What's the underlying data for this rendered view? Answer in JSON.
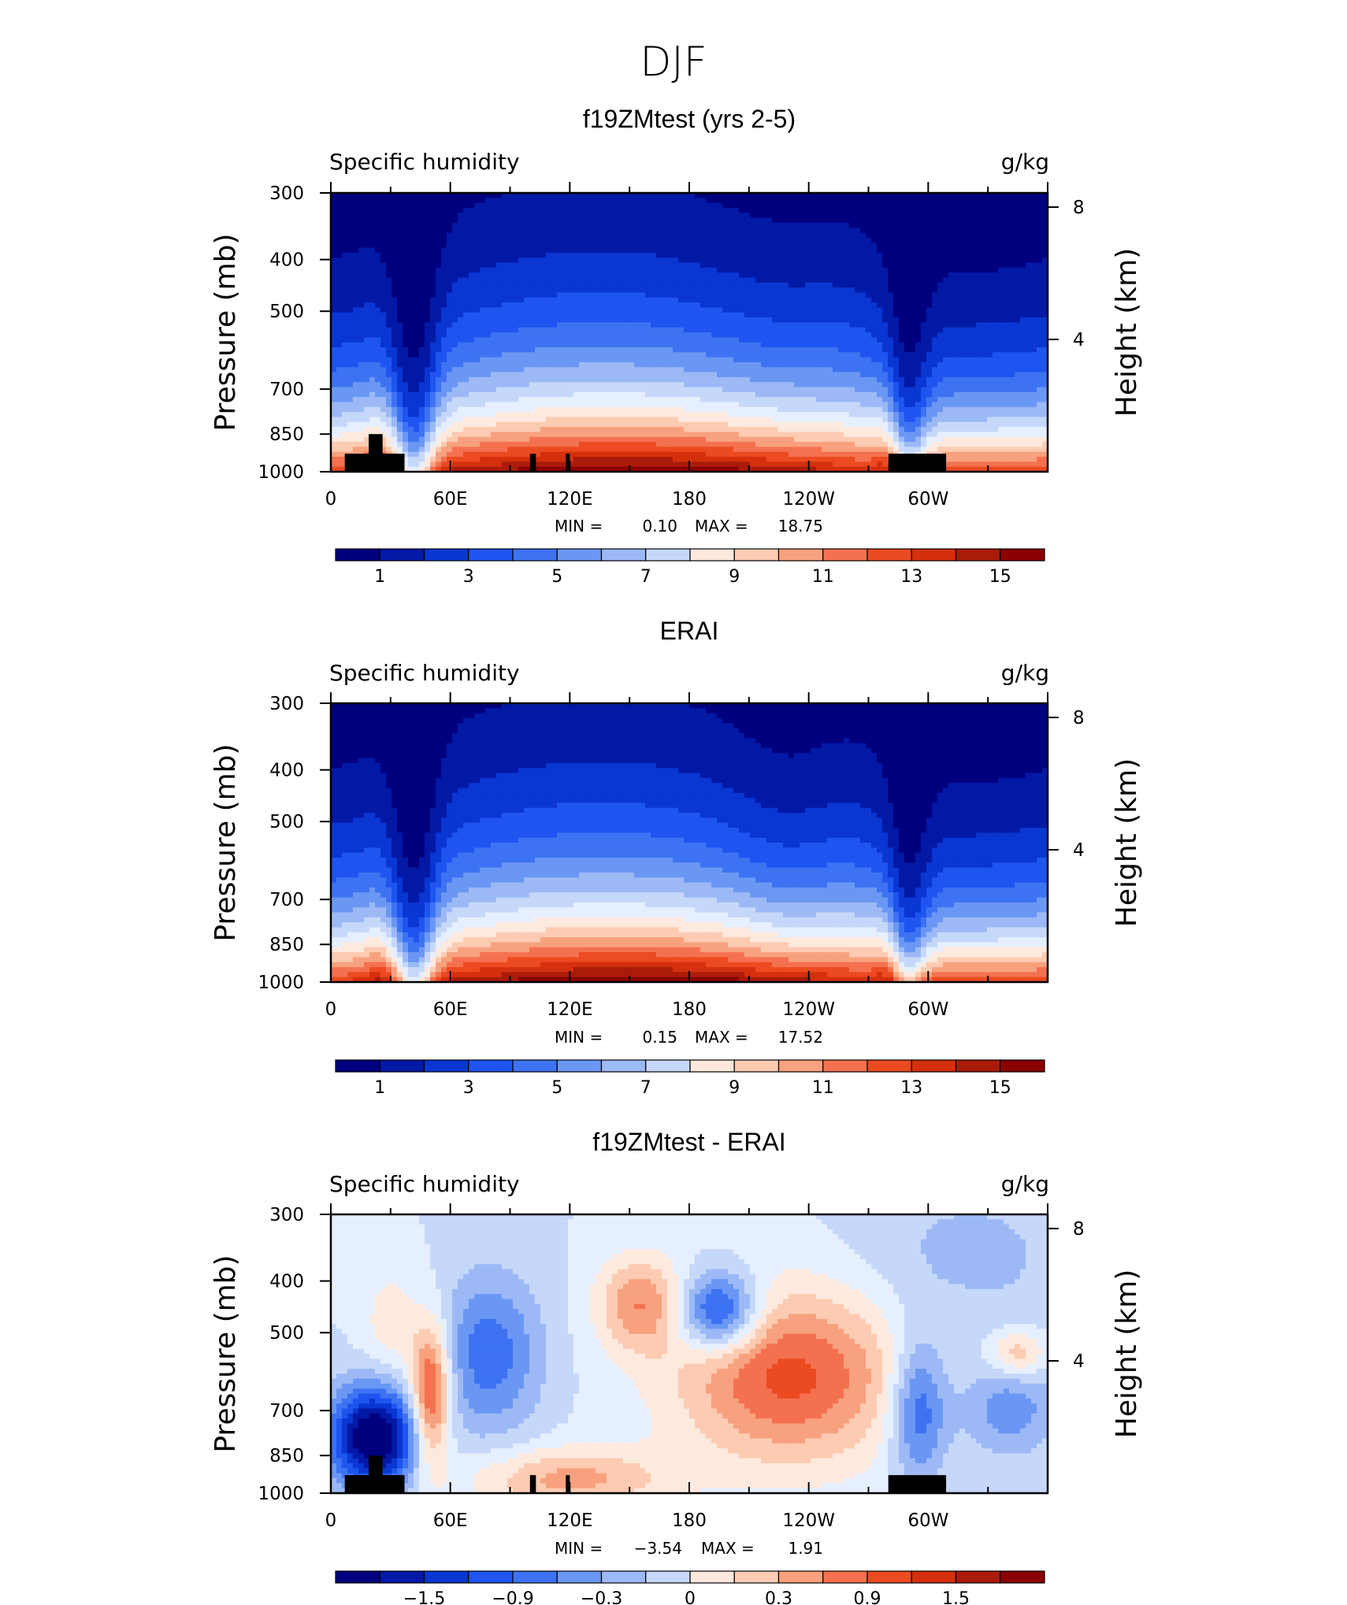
{
  "main_title": "DJF",
  "chart_data": [
    {
      "type": "heatmap",
      "title": "f19ZMtest (yrs 2-5)",
      "left_label": "Specific humidity",
      "right_label": "g/kg",
      "ylabel": "Pressure (mb)",
      "ylabel_right": "Height (km)",
      "y_ticks": [
        "300",
        "400",
        "500",
        "700",
        "850",
        "1000"
      ],
      "y_ticks_right": [
        "8",
        "4"
      ],
      "x_ticks": [
        "0",
        "60E",
        "120E",
        "180",
        "120W",
        "60W"
      ],
      "min_label": "MIN =",
      "min_value": "0.10",
      "max_label": "MAX =",
      "max_value": "18.75",
      "colorbar_labels": [
        "1",
        "3",
        "5",
        "7",
        "9",
        "11",
        "13",
        "15"
      ],
      "field": "absolute"
    },
    {
      "type": "heatmap",
      "title": "ERAI",
      "left_label": "Specific humidity",
      "right_label": "g/kg",
      "ylabel": "Pressure (mb)",
      "ylabel_right": "Height (km)",
      "y_ticks": [
        "300",
        "400",
        "500",
        "700",
        "850",
        "1000"
      ],
      "y_ticks_right": [
        "8",
        "4"
      ],
      "x_ticks": [
        "0",
        "60E",
        "120E",
        "180",
        "120W",
        "60W"
      ],
      "min_label": "MIN =",
      "min_value": "0.15",
      "max_label": "MAX =",
      "max_value": "17.52",
      "colorbar_labels": [
        "1",
        "3",
        "5",
        "7",
        "9",
        "11",
        "13",
        "15"
      ],
      "field": "absolute"
    },
    {
      "type": "heatmap",
      "title": "f19ZMtest - ERAI",
      "left_label": "Specific humidity",
      "right_label": "g/kg",
      "ylabel": "Pressure (mb)",
      "ylabel_right": "Height (km)",
      "y_ticks": [
        "300",
        "400",
        "500",
        "700",
        "850",
        "1000"
      ],
      "y_ticks_right": [
        "8",
        "4"
      ],
      "x_ticks": [
        "0",
        "60E",
        "120E",
        "180",
        "120W",
        "60W"
      ],
      "min_label": "MIN =",
      "min_value": "−3.54",
      "max_label": "MAX =",
      "max_value": "1.91",
      "colorbar_labels": [
        "−1.5",
        "−0.9",
        "−0.3",
        "0",
        "0.3",
        "0.9",
        "1.5"
      ],
      "field": "difference"
    }
  ],
  "colors": {
    "palette": [
      "#00007f",
      "#0219a6",
      "#0a36d2",
      "#1e55f0",
      "#3d73f2",
      "#6b97f4",
      "#9cb9f6",
      "#c6d8fa",
      "#e6efff",
      "#fde9dd",
      "#fccbb2",
      "#f8a17e",
      "#f47150",
      "#ec4a21",
      "#d4300d",
      "#aa1b0a",
      "#8b0000"
    ]
  }
}
